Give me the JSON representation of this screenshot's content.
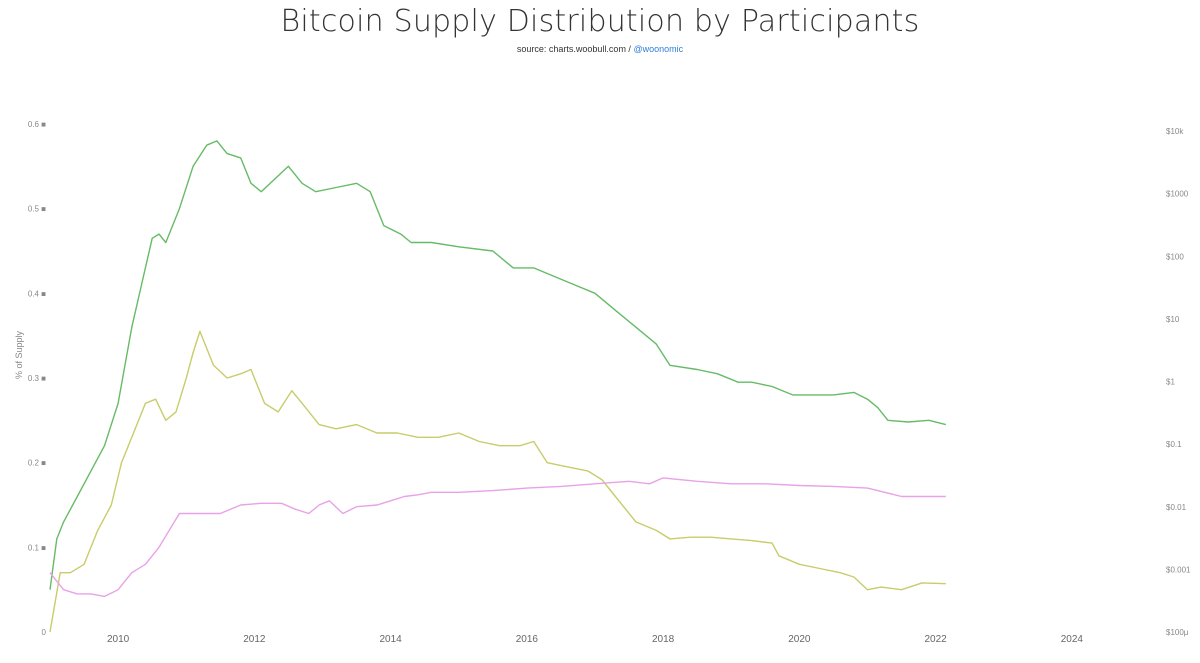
{
  "header": {
    "title": "Bitcoin Supply Distribution by Participants",
    "source_prefix": "source: charts.woobull.com /",
    "source_link": "@woonomic"
  },
  "chart_data": {
    "type": "line",
    "title": "Bitcoin Supply Distribution by Participants",
    "subtitle": "source: charts.woobull.com / @woonomic",
    "xlabel": "",
    "ylabel": "% of Supply",
    "xlim": [
      2009.0,
      2025.0
    ],
    "ylim": [
      0,
      0.6
    ],
    "x_ticks": [
      "2010",
      "2012",
      "2014",
      "2016",
      "2018",
      "2020",
      "2022",
      "2024"
    ],
    "x_tick_values": [
      2010,
      2012,
      2014,
      2016,
      2018,
      2020,
      2022,
      2024
    ],
    "y_ticks": [
      "0",
      "0.1 ■",
      "0.2 ■",
      "0.3 ■",
      "0.4 ■",
      "0.5 ■",
      "0.6 ■"
    ],
    "y_tick_values": [
      0,
      0.1,
      0.2,
      0.3,
      0.4,
      0.5,
      0.6
    ],
    "right_axis_ticks": [
      "$100μ",
      "$0.001",
      "$0.01",
      "$0.1",
      "$1",
      "$10",
      "$100",
      "$1000",
      "$10k"
    ],
    "grid": false,
    "legend": "none",
    "series": [
      {
        "name": "green",
        "color": "#66bb66",
        "x": [
          2009.0,
          2009.1,
          2009.2,
          2009.4,
          2009.6,
          2009.8,
          2010.0,
          2010.2,
          2010.4,
          2010.5,
          2010.6,
          2010.7,
          2010.9,
          2011.1,
          2011.3,
          2011.45,
          2011.6,
          2011.8,
          2011.95,
          2012.1,
          2012.3,
          2012.5,
          2012.7,
          2012.9,
          2013.2,
          2013.5,
          2013.7,
          2013.9,
          2014.15,
          2014.3,
          2014.6,
          2015.0,
          2015.5,
          2015.8,
          2016.1,
          2016.4,
          2016.7,
          2017.0,
          2017.3,
          2017.6,
          2017.9,
          2018.1,
          2018.5,
          2018.8,
          2019.1,
          2019.3,
          2019.6,
          2019.9,
          2020.2,
          2020.5,
          2020.8,
          2021.0,
          2021.15,
          2021.3,
          2021.6,
          2021.9,
          2022.15
        ],
        "y": [
          0.05,
          0.11,
          0.13,
          0.16,
          0.19,
          0.22,
          0.27,
          0.36,
          0.43,
          0.465,
          0.47,
          0.46,
          0.5,
          0.55,
          0.575,
          0.58,
          0.565,
          0.56,
          0.53,
          0.52,
          0.535,
          0.55,
          0.53,
          0.52,
          0.525,
          0.53,
          0.52,
          0.48,
          0.47,
          0.46,
          0.46,
          0.455,
          0.45,
          0.43,
          0.43,
          0.42,
          0.41,
          0.4,
          0.38,
          0.36,
          0.34,
          0.315,
          0.31,
          0.305,
          0.295,
          0.295,
          0.29,
          0.28,
          0.28,
          0.28,
          0.283,
          0.275,
          0.265,
          0.25,
          0.248,
          0.25,
          0.245
        ]
      },
      {
        "name": "yellow",
        "color": "#c8cc6a",
        "x": [
          2009.0,
          2009.15,
          2009.3,
          2009.5,
          2009.7,
          2009.9,
          2010.05,
          2010.25,
          2010.4,
          2010.55,
          2010.7,
          2010.85,
          2011.0,
          2011.1,
          2011.2,
          2011.4,
          2011.6,
          2011.8,
          2011.95,
          2012.15,
          2012.35,
          2012.55,
          2012.75,
          2012.95,
          2013.2,
          2013.5,
          2013.8,
          2014.1,
          2014.4,
          2014.7,
          2015.0,
          2015.3,
          2015.6,
          2015.9,
          2016.1,
          2016.3,
          2016.6,
          2016.9,
          2017.1,
          2017.3,
          2017.6,
          2017.9,
          2018.1,
          2018.4,
          2018.7,
          2019.0,
          2019.3,
          2019.6,
          2019.7,
          2020.0,
          2020.3,
          2020.6,
          2020.8,
          2021.0,
          2021.2,
          2021.5,
          2021.8,
          2022.15
        ],
        "y": [
          0.0,
          0.07,
          0.07,
          0.08,
          0.12,
          0.15,
          0.2,
          0.24,
          0.27,
          0.275,
          0.25,
          0.26,
          0.3,
          0.33,
          0.355,
          0.315,
          0.3,
          0.305,
          0.31,
          0.27,
          0.26,
          0.285,
          0.265,
          0.245,
          0.24,
          0.245,
          0.235,
          0.235,
          0.23,
          0.23,
          0.235,
          0.225,
          0.22,
          0.22,
          0.225,
          0.2,
          0.195,
          0.19,
          0.18,
          0.16,
          0.13,
          0.12,
          0.11,
          0.112,
          0.112,
          0.11,
          0.108,
          0.105,
          0.09,
          0.08,
          0.075,
          0.07,
          0.065,
          0.05,
          0.053,
          0.05,
          0.058,
          0.057
        ]
      },
      {
        "name": "pink",
        "color": "#e8a2e8",
        "x": [
          2009.0,
          2009.2,
          2009.4,
          2009.6,
          2009.8,
          2010.0,
          2010.2,
          2010.4,
          2010.6,
          2010.75,
          2010.9,
          2011.2,
          2011.5,
          2011.8,
          2012.1,
          2012.4,
          2012.6,
          2012.8,
          2012.95,
          2013.1,
          2013.3,
          2013.5,
          2013.8,
          2014.0,
          2014.2,
          2014.4,
          2014.6,
          2015.0,
          2015.5,
          2016.0,
          2016.5,
          2017.0,
          2017.5,
          2017.8,
          2018.0,
          2018.5,
          2019.0,
          2019.5,
          2020.0,
          2020.5,
          2021.0,
          2021.5,
          2022.15
        ],
        "y": [
          0.07,
          0.05,
          0.045,
          0.045,
          0.042,
          0.05,
          0.07,
          0.08,
          0.1,
          0.12,
          0.14,
          0.14,
          0.14,
          0.15,
          0.152,
          0.152,
          0.145,
          0.14,
          0.15,
          0.155,
          0.14,
          0.148,
          0.15,
          0.155,
          0.16,
          0.162,
          0.165,
          0.165,
          0.167,
          0.17,
          0.172,
          0.175,
          0.178,
          0.175,
          0.182,
          0.178,
          0.175,
          0.175,
          0.173,
          0.172,
          0.17,
          0.16,
          0.16
        ]
      }
    ]
  }
}
